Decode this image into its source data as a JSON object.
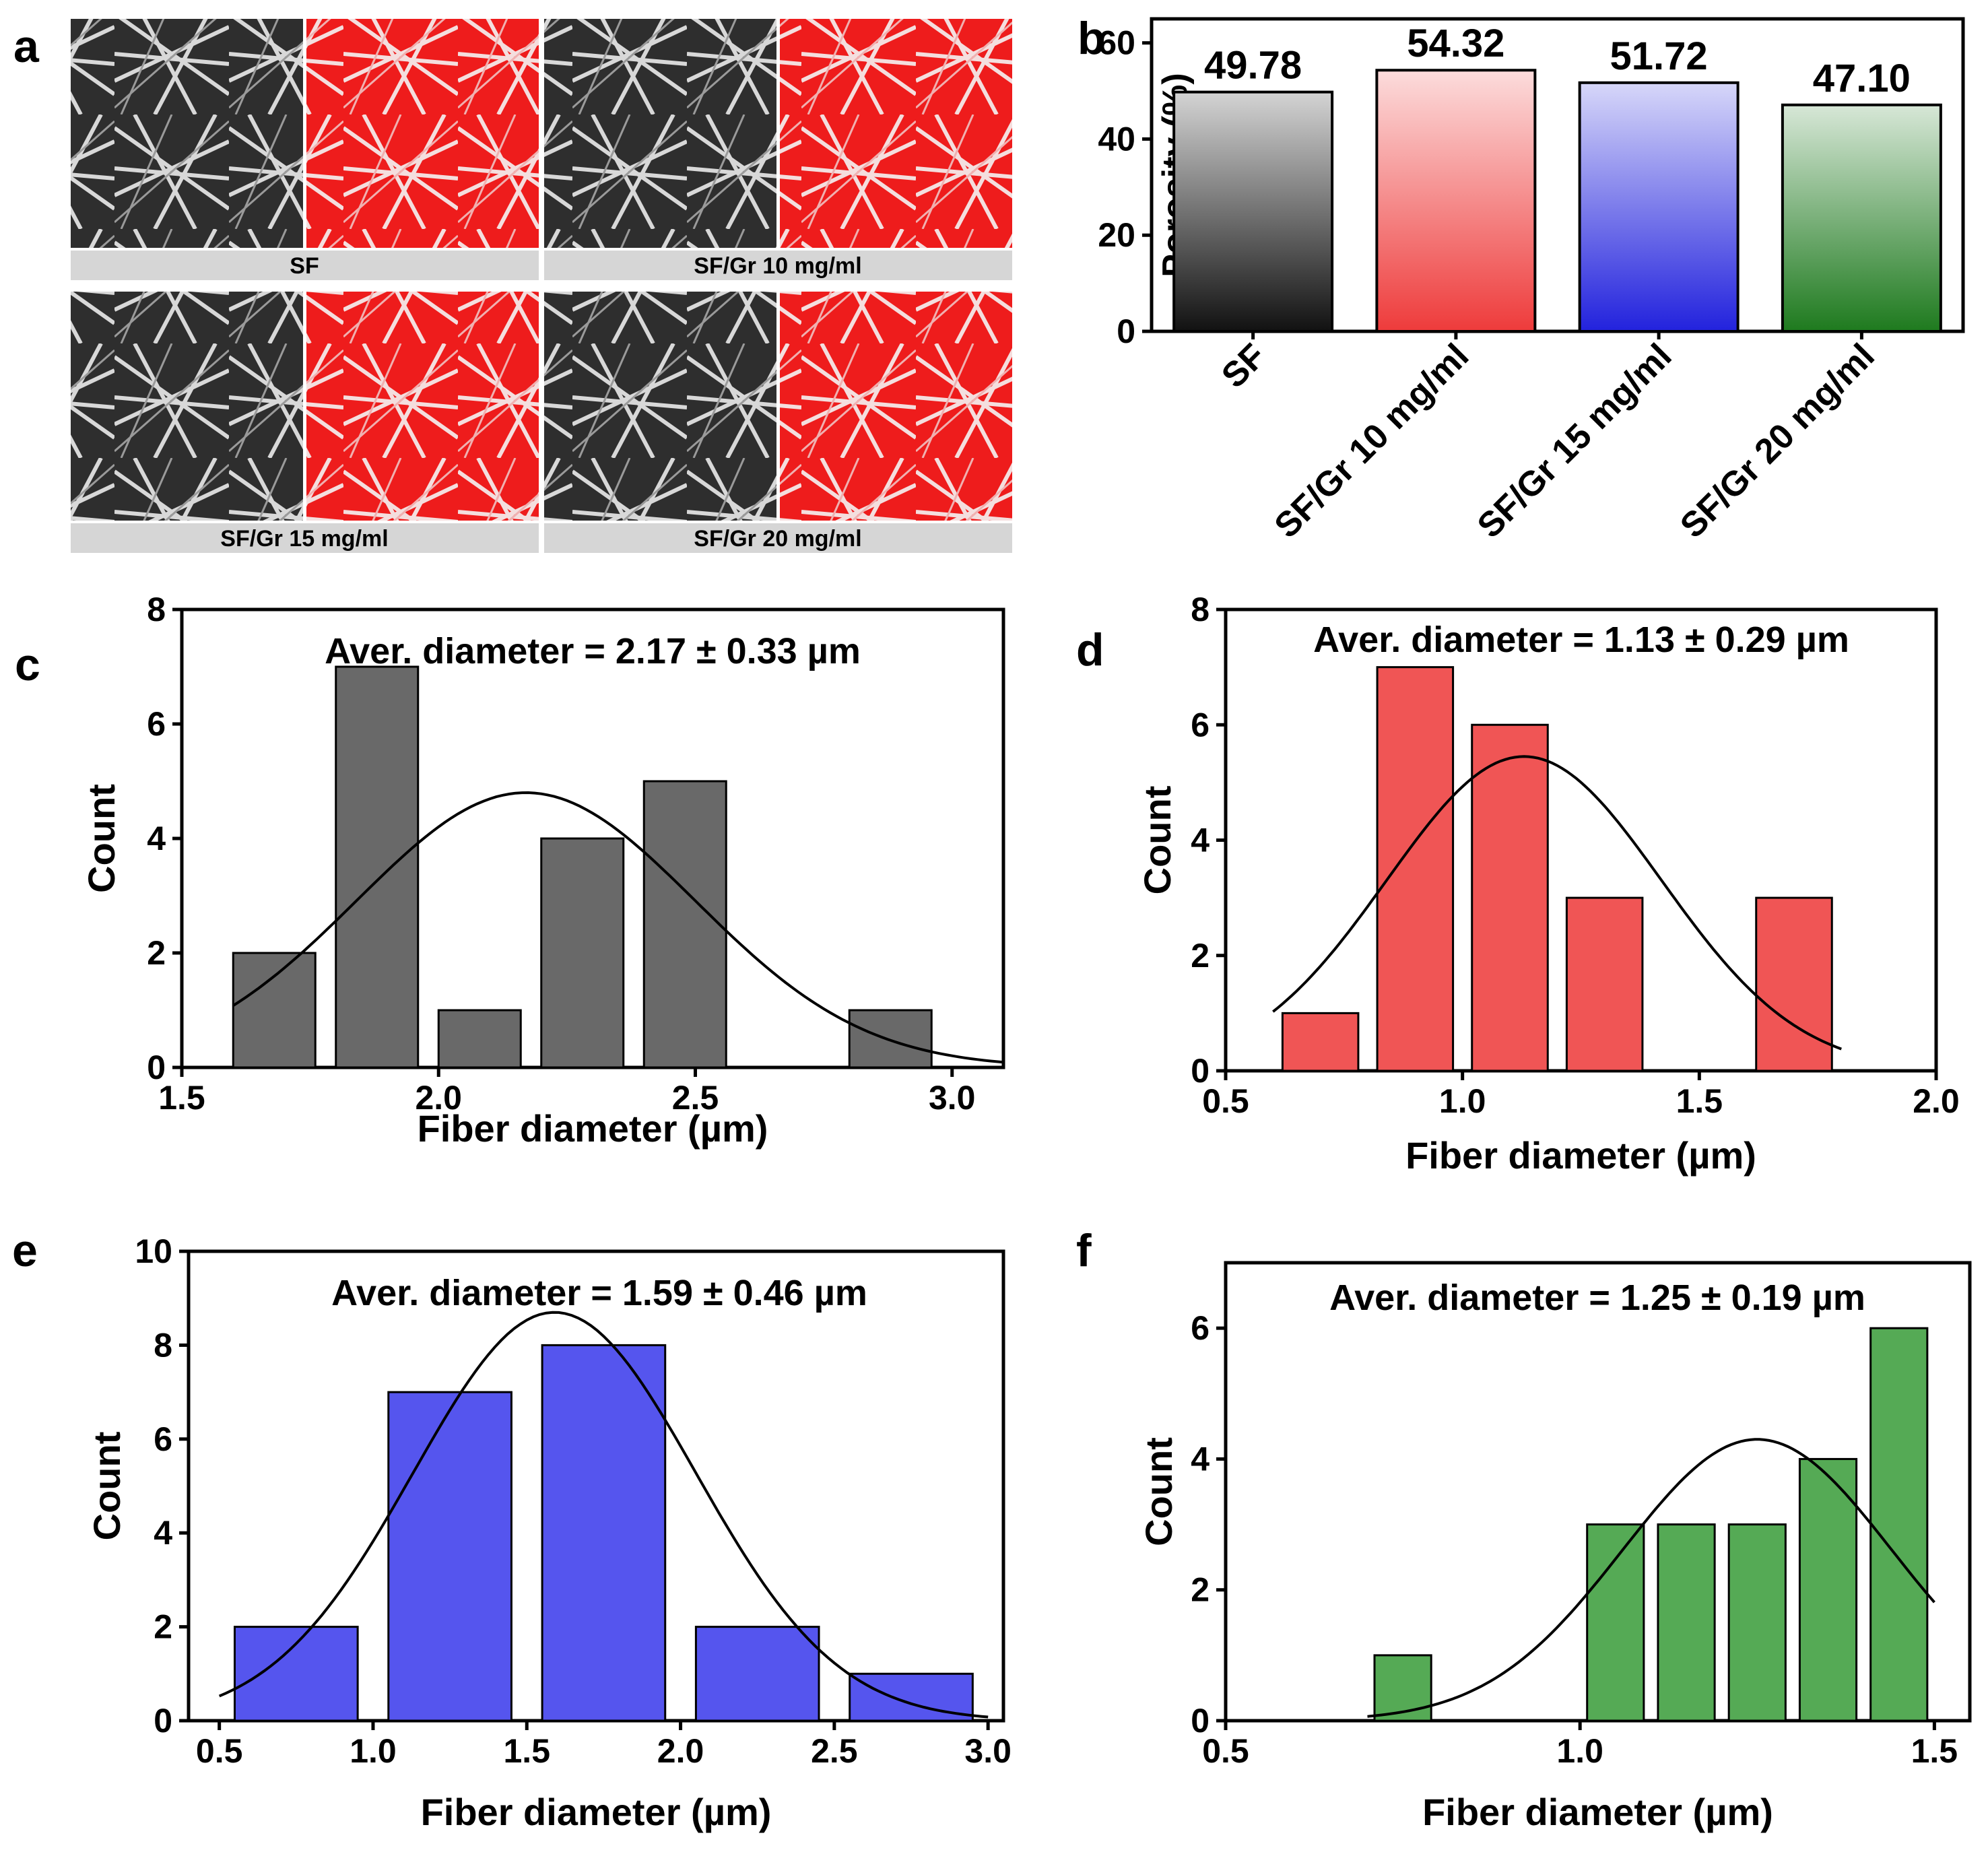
{
  "panel_letters": {
    "a": "a",
    "b": "b",
    "c": "c",
    "d": "d",
    "e": "e",
    "f": "f"
  },
  "sem_panels": [
    {
      "label": "SF"
    },
    {
      "label": "SF/Gr 10 mg/ml"
    },
    {
      "label": "SF/Gr 15 mg/ml"
    },
    {
      "label": "SF/Gr 20 mg/ml"
    }
  ],
  "chart_data": [
    {
      "id": "b",
      "type": "bar",
      "categories": [
        "SF",
        "SF/Gr 10 mg/ml",
        "SF/Gr 15 mg/ml",
        "SF/Gr 20 mg/ml"
      ],
      "values": [
        49.78,
        54.32,
        51.72,
        47.1
      ],
      "value_labels": [
        "49.78",
        "54.32",
        "51.72",
        "47.10"
      ],
      "colors": [
        "#111111",
        "#ee3b3b",
        "#2222dd",
        "#1e7a1e"
      ],
      "ylabel": "Porosity (%)",
      "ylim": [
        0,
        65
      ],
      "yticks": [
        0,
        20,
        40,
        60
      ]
    },
    {
      "id": "c",
      "type": "histogram",
      "bins": [
        [
          1.6,
          1.76
        ],
        [
          1.8,
          1.96
        ],
        [
          2.0,
          2.16
        ],
        [
          2.2,
          2.36
        ],
        [
          2.4,
          2.56
        ],
        [
          2.8,
          2.96
        ]
      ],
      "counts": [
        2,
        7,
        1,
        4,
        5,
        1
      ],
      "color": "#696969",
      "gauss": {
        "mean": 2.17,
        "sd": 0.33,
        "peak": 4.8,
        "xrange": [
          1.6,
          3.1
        ]
      },
      "xlim": [
        1.5,
        3.1
      ],
      "xticks": [
        1.5,
        2.0,
        2.5,
        3.0
      ],
      "xtick_labels": [
        "1.5",
        "2.0",
        "2.5",
        "3.0"
      ],
      "ylim": [
        0,
        8
      ],
      "yticks": [
        0,
        2,
        4,
        6,
        8
      ],
      "xlabel": "Fiber diameter (µm)",
      "ylabel": "Count",
      "annotation": "Aver. diameter = 2.17  ± 0.33 µm"
    },
    {
      "id": "d",
      "type": "histogram",
      "bins": [
        [
          0.62,
          0.78
        ],
        [
          0.82,
          0.98
        ],
        [
          1.02,
          1.18
        ],
        [
          1.22,
          1.38
        ],
        [
          1.62,
          1.78
        ]
      ],
      "counts": [
        1,
        7,
        6,
        3,
        3
      ],
      "color": "#f05555",
      "gauss": {
        "mean": 1.13,
        "sd": 0.29,
        "peak": 5.45,
        "xrange": [
          0.6,
          1.8
        ]
      },
      "xlim": [
        0.5,
        2.0
      ],
      "xticks": [
        0.5,
        1.0,
        1.5,
        2.0
      ],
      "xtick_labels": [
        "0.5",
        "1.0",
        "1.5",
        "2.0"
      ],
      "ylim": [
        0,
        8
      ],
      "yticks": [
        0,
        2,
        4,
        6,
        8
      ],
      "xlabel": "Fiber diameter (µm)",
      "ylabel": "Count",
      "annotation": "Aver. diameter = 1.13  ± 0.29 µm"
    },
    {
      "id": "e",
      "type": "histogram",
      "bins": [
        [
          0.55,
          0.95
        ],
        [
          1.05,
          1.45
        ],
        [
          1.55,
          1.95
        ],
        [
          2.05,
          2.45
        ],
        [
          2.55,
          2.95
        ]
      ],
      "counts": [
        2,
        7,
        8,
        2,
        1
      ],
      "color": "#5555ee",
      "gauss": {
        "mean": 1.59,
        "sd": 0.46,
        "peak": 8.7,
        "xrange": [
          0.5,
          3.0
        ]
      },
      "xlim": [
        0.4,
        3.05
      ],
      "xticks": [
        0.5,
        1.0,
        1.5,
        2.0,
        2.5,
        3.0
      ],
      "xtick_labels": [
        "0.5",
        "1.0",
        "1.5",
        "2.0",
        "2.5",
        "3.0"
      ],
      "ylim": [
        0,
        10
      ],
      "yticks": [
        0,
        2,
        4,
        6,
        8,
        10
      ],
      "xlabel": "Fiber diameter (µm)",
      "ylabel": "Count",
      "annotation": "Aver. diameter = 1.59  ± 0.46 µm"
    },
    {
      "id": "f",
      "type": "histogram",
      "bins": [
        [
          0.71,
          0.79
        ],
        [
          1.01,
          1.09
        ],
        [
          1.11,
          1.19
        ],
        [
          1.21,
          1.29
        ],
        [
          1.31,
          1.39
        ],
        [
          1.41,
          1.49
        ]
      ],
      "counts": [
        1,
        3,
        3,
        3,
        4,
        6
      ],
      "color": "#55aa55",
      "gauss": {
        "mean": 1.25,
        "sd": 0.19,
        "peak": 4.3,
        "xrange": [
          0.7,
          1.5
        ]
      },
      "xlim": [
        0.5,
        1.55
      ],
      "xticks": [
        0.5,
        1.0,
        1.5
      ],
      "xtick_labels": [
        "0.5",
        "1.0",
        "1.5"
      ],
      "ylim": [
        0,
        7
      ],
      "yticks": [
        0,
        2,
        4,
        6
      ],
      "xlabel": "Fiber diameter (µm)",
      "ylabel": "Count",
      "annotation": "Aver. diameter = 1.25  ± 0.19 µm"
    }
  ]
}
